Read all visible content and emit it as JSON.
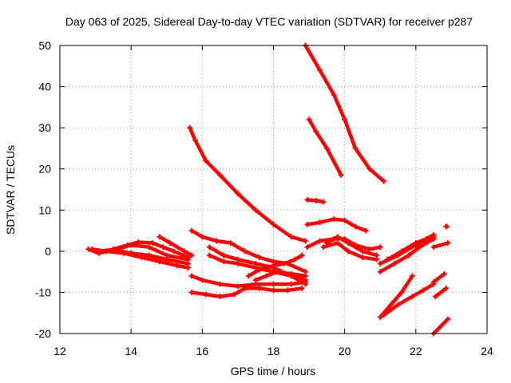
{
  "chart_data": {
    "type": "scatter",
    "title": "Day 063 of 2025, Sidereal Day-to-day VTEC variation (SDTVAR) for receiver p287",
    "xlabel": "GPS time / hours",
    "ylabel": "SDTVAR / TECUs",
    "xlim": [
      12,
      24
    ],
    "ylim": [
      -20,
      50
    ],
    "xticks": [
      "12",
      "14",
      "16",
      "18",
      "20",
      "22",
      "24"
    ],
    "yticks": [
      "-20",
      "-10",
      "0",
      "10",
      "20",
      "30",
      "40",
      "50"
    ],
    "grid": true,
    "marker_color": "#ff0000",
    "series": [
      {
        "name": "track-1",
        "points": [
          [
            15.65,
            30
          ],
          [
            15.8,
            27
          ],
          [
            16.1,
            22
          ],
          [
            16.5,
            18.5
          ],
          [
            17.0,
            14
          ],
          [
            17.5,
            10
          ],
          [
            18.0,
            6.5
          ],
          [
            18.5,
            3.5
          ],
          [
            18.9,
            2.5
          ]
        ]
      },
      {
        "name": "track-2",
        "points": [
          [
            18.9,
            50
          ],
          [
            19.3,
            44
          ],
          [
            19.7,
            38
          ],
          [
            20.0,
            32
          ],
          [
            20.3,
            25
          ],
          [
            20.7,
            20
          ],
          [
            21.1,
            17
          ]
        ]
      },
      {
        "name": "track-3",
        "points": [
          [
            19.0,
            32
          ],
          [
            19.2,
            29
          ],
          [
            19.5,
            25
          ],
          [
            19.9,
            18.5
          ]
        ]
      },
      {
        "name": "track-4",
        "points": [
          [
            18.95,
            12.5
          ],
          [
            19.2,
            12.3
          ],
          [
            19.4,
            12
          ]
        ]
      },
      {
        "name": "track-5",
        "points": [
          [
            18.95,
            6.5
          ],
          [
            19.3,
            7
          ],
          [
            19.7,
            7.8
          ],
          [
            20.0,
            7.5
          ],
          [
            20.3,
            6
          ],
          [
            20.6,
            5
          ]
        ]
      },
      {
        "name": "track-6",
        "points": [
          [
            18.95,
            1
          ],
          [
            19.3,
            2.5
          ],
          [
            19.7,
            3
          ],
          [
            20.0,
            3
          ],
          [
            20.3,
            1.5
          ],
          [
            20.7,
            0.5
          ],
          [
            21.0,
            1
          ]
        ]
      },
      {
        "name": "track-7",
        "points": [
          [
            19.4,
            1
          ],
          [
            19.8,
            2
          ],
          [
            20.1,
            0
          ],
          [
            20.5,
            -1.5
          ],
          [
            20.9,
            -2
          ]
        ]
      },
      {
        "name": "track-8",
        "points": [
          [
            19.5,
            2
          ],
          [
            19.8,
            3.5
          ],
          [
            20.1,
            2
          ],
          [
            20.5,
            0
          ],
          [
            20.9,
            -1
          ]
        ]
      },
      {
        "name": "track-9",
        "points": [
          [
            12.8,
            0.5
          ],
          [
            13.1,
            -0.5
          ],
          [
            13.5,
            0.5
          ],
          [
            13.9,
            1.5
          ],
          [
            14.2,
            2.2
          ],
          [
            14.6,
            2
          ],
          [
            14.9,
            1
          ],
          [
            15.2,
            0
          ],
          [
            15.6,
            -1.5
          ]
        ]
      },
      {
        "name": "track-10",
        "points": [
          [
            12.9,
            0.5
          ],
          [
            13.3,
            0
          ],
          [
            13.8,
            -0.5
          ],
          [
            14.3,
            -1.5
          ],
          [
            14.8,
            -2.5
          ],
          [
            15.3,
            -3.5
          ],
          [
            15.6,
            -4
          ]
        ]
      },
      {
        "name": "track-11",
        "points": [
          [
            13.0,
            0
          ],
          [
            13.5,
            0.3
          ],
          [
            14.0,
            -0.5
          ],
          [
            14.5,
            -1
          ],
          [
            15.0,
            -2
          ],
          [
            15.6,
            -3
          ]
        ]
      },
      {
        "name": "track-12",
        "points": [
          [
            14.8,
            3.5
          ],
          [
            15.1,
            2
          ],
          [
            15.5,
            0
          ],
          [
            15.7,
            -1
          ]
        ]
      },
      {
        "name": "track-13",
        "points": [
          [
            13.1,
            0
          ],
          [
            13.6,
            0.5
          ],
          [
            14.0,
            1.5
          ],
          [
            14.5,
            1
          ],
          [
            15.0,
            -1
          ],
          [
            15.6,
            -2
          ]
        ]
      },
      {
        "name": "track-14",
        "points": [
          [
            15.7,
            5
          ],
          [
            16.0,
            3.5
          ],
          [
            16.4,
            2.5
          ],
          [
            16.8,
            2
          ],
          [
            17.2,
            0
          ],
          [
            17.6,
            -1.5
          ],
          [
            18.0,
            -2.5
          ],
          [
            18.4,
            -3
          ],
          [
            18.9,
            -5
          ]
        ]
      },
      {
        "name": "track-15",
        "points": [
          [
            16.2,
            1
          ],
          [
            16.6,
            -1
          ],
          [
            17.0,
            -2
          ],
          [
            17.5,
            -3
          ],
          [
            18.0,
            -4
          ],
          [
            18.5,
            -6
          ],
          [
            18.9,
            -8
          ]
        ]
      },
      {
        "name": "track-16",
        "points": [
          [
            16.2,
            -1
          ],
          [
            16.6,
            -2.5
          ],
          [
            17.0,
            -3
          ],
          [
            17.5,
            -4
          ],
          [
            18.0,
            -5
          ],
          [
            18.5,
            -6
          ],
          [
            18.9,
            -7
          ]
        ]
      },
      {
        "name": "track-17",
        "points": [
          [
            15.7,
            -6
          ],
          [
            16.0,
            -7
          ],
          [
            16.5,
            -8
          ],
          [
            17.0,
            -8.5
          ],
          [
            17.5,
            -8
          ],
          [
            18.0,
            -8
          ],
          [
            18.5,
            -8
          ],
          [
            18.9,
            -7.5
          ]
        ]
      },
      {
        "name": "track-18",
        "points": [
          [
            15.7,
            -10
          ],
          [
            16.1,
            -10.5
          ],
          [
            16.5,
            -11
          ],
          [
            16.9,
            -10.5
          ],
          [
            17.2,
            -9
          ],
          [
            17.6,
            -9
          ],
          [
            18.0,
            -9.5
          ],
          [
            18.4,
            -9.5
          ],
          [
            18.8,
            -9
          ]
        ]
      },
      {
        "name": "track-19",
        "points": [
          [
            17.3,
            -6
          ],
          [
            17.6,
            -4.5
          ],
          [
            18.0,
            -3.5
          ],
          [
            18.3,
            -3
          ],
          [
            18.6,
            -2
          ],
          [
            18.8,
            -1
          ]
        ]
      },
      {
        "name": "track-20",
        "points": [
          [
            17.5,
            -7
          ],
          [
            17.8,
            -6
          ],
          [
            18.1,
            -5
          ],
          [
            18.5,
            -5.5
          ],
          [
            18.9,
            -6
          ]
        ]
      },
      {
        "name": "track-21",
        "points": [
          [
            21.0,
            -16
          ],
          [
            21.3,
            -13
          ],
          [
            21.6,
            -10
          ],
          [
            21.9,
            -6
          ]
        ]
      },
      {
        "name": "track-22",
        "points": [
          [
            21.1,
            -15.5
          ],
          [
            21.5,
            -13
          ],
          [
            21.9,
            -11
          ],
          [
            22.2,
            -9.5
          ],
          [
            22.5,
            -8
          ]
        ]
      },
      {
        "name": "track-23",
        "points": [
          [
            21.0,
            -5
          ],
          [
            21.4,
            -3
          ],
          [
            21.8,
            -1
          ],
          [
            22.1,
            1
          ],
          [
            22.5,
            3
          ]
        ]
      },
      {
        "name": "track-24",
        "points": [
          [
            21.0,
            -3
          ],
          [
            21.5,
            -1
          ],
          [
            22.0,
            1.5
          ],
          [
            22.5,
            4
          ]
        ]
      },
      {
        "name": "track-25",
        "points": [
          [
            21.2,
            -2
          ],
          [
            21.6,
            0
          ],
          [
            22.0,
            2
          ],
          [
            22.3,
            3
          ],
          [
            22.5,
            3.5
          ]
        ]
      },
      {
        "name": "track-26",
        "points": [
          [
            22.5,
            -7.5
          ],
          [
            22.8,
            -5.5
          ]
        ]
      },
      {
        "name": "track-27",
        "points": [
          [
            22.55,
            -11
          ],
          [
            22.85,
            -9
          ]
        ]
      },
      {
        "name": "track-28",
        "points": [
          [
            22.5,
            -20
          ],
          [
            22.9,
            -16.5
          ]
        ]
      },
      {
        "name": "track-29",
        "points": [
          [
            22.5,
            1
          ],
          [
            22.9,
            2
          ]
        ]
      },
      {
        "name": "track-30",
        "points": [
          [
            22.85,
            6
          ],
          [
            22.87,
            6
          ]
        ]
      }
    ]
  }
}
